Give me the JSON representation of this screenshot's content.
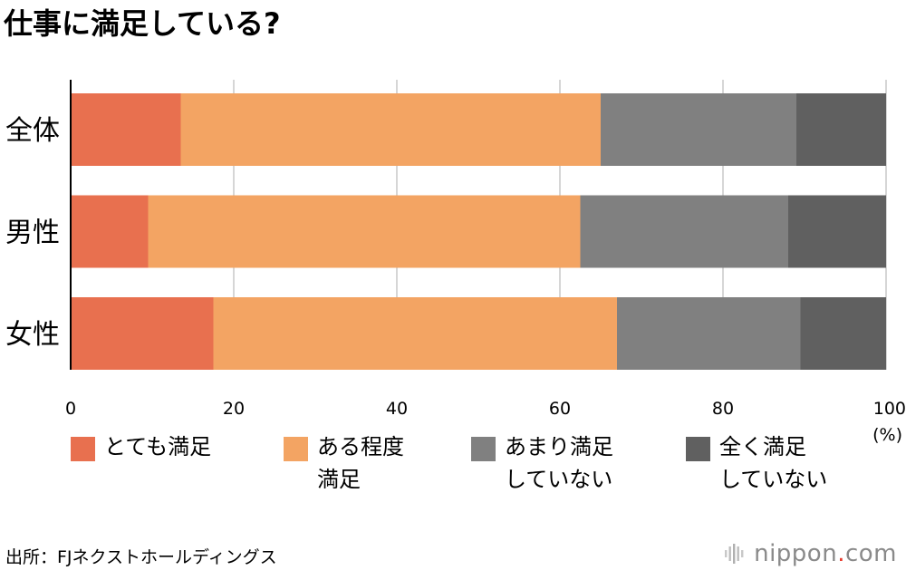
{
  "chart_data": {
    "type": "bar",
    "orientation": "horizontal",
    "stacked": true,
    "title": "仕事に満足している?",
    "categories": [
      "全体",
      "男性",
      "女性"
    ],
    "series": [
      {
        "name": "とても満足",
        "color": "#e8704f",
        "values": [
          13.5,
          9.5,
          17.5
        ]
      },
      {
        "name": "ある程度\n満足",
        "color": "#f3a463",
        "values": [
          51.5,
          53.0,
          49.5
        ]
      },
      {
        "name": "あまり満足\nしていない",
        "color": "#808080",
        "values": [
          24.0,
          25.5,
          22.5
        ]
      },
      {
        "name": "全く満足\nしていない",
        "color": "#606060",
        "values": [
          11.0,
          12.0,
          10.5
        ]
      }
    ],
    "xlim": [
      0,
      100
    ],
    "xticks": [
      "0",
      "20",
      "40",
      "60",
      "80",
      "100"
    ],
    "xunit": "(%)",
    "grid": true,
    "legend_position": "bottom"
  },
  "source": "出所：FJネクストホールディングス",
  "logo": {
    "name": "nippon",
    "dot": ".",
    "tld": "com",
    "accent": "#e7392b"
  }
}
